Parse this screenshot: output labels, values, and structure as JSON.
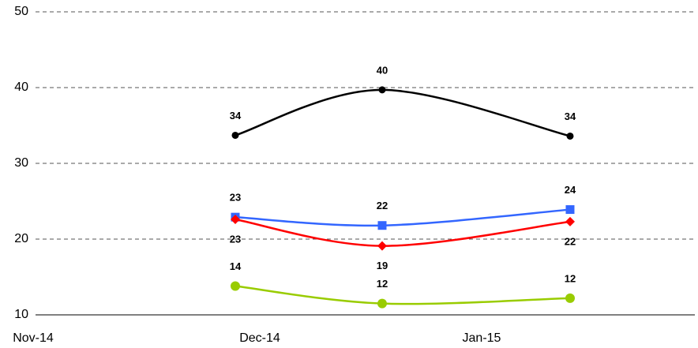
{
  "chart_data": {
    "type": "line",
    "categories": [
      null,
      null,
      null
    ],
    "x_axis_labels": [
      "Nov-14",
      "Dec-14",
      "Jan-15"
    ],
    "ylim": [
      10,
      50
    ],
    "yticks": [
      10,
      20,
      30,
      40,
      50
    ],
    "grid": true,
    "series": [
      {
        "color": "#000000",
        "marker": "circle",
        "values": [
          33.7,
          39.7,
          33.6
        ],
        "value_labels": [
          "34",
          "40",
          "34"
        ]
      },
      {
        "color": "#3366ff",
        "marker": "square",
        "values": [
          22.9,
          21.8,
          23.9
        ],
        "value_labels": [
          "23",
          "22",
          "24"
        ]
      },
      {
        "color": "#ff0000",
        "marker": "diamond",
        "values": [
          22.6,
          19.1,
          22.3
        ],
        "value_labels": [
          "23",
          "19",
          "22"
        ]
      },
      {
        "color": "#99cc00",
        "marker": "circle",
        "values": [
          13.8,
          11.5,
          12.2
        ],
        "value_labels": [
          "14",
          "12",
          "12"
        ]
      }
    ]
  }
}
